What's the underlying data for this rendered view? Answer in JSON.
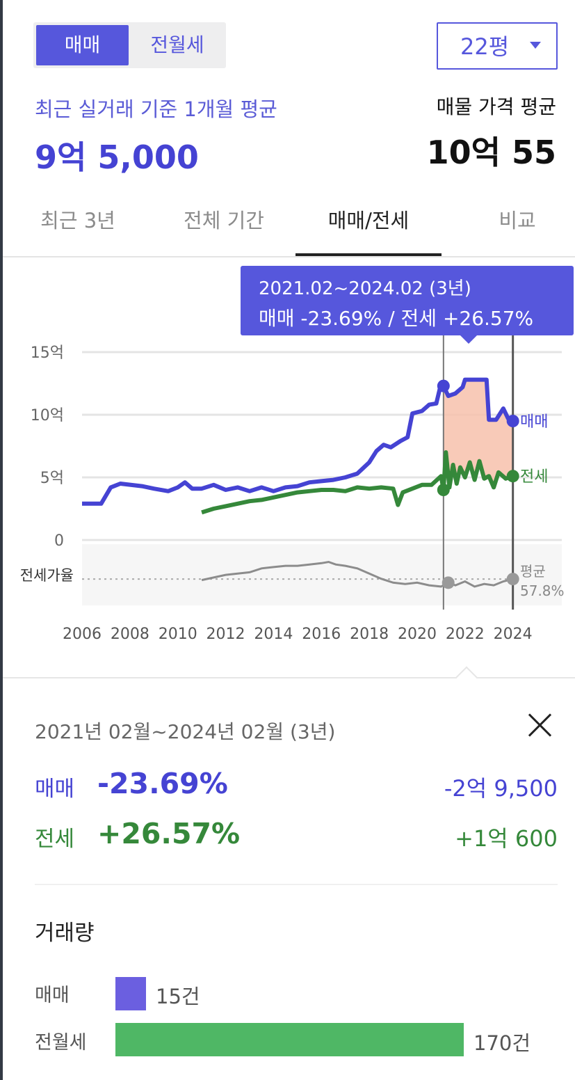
{
  "toggle": {
    "sale": "매매",
    "rent": "전월세"
  },
  "size_select": {
    "value": "22평"
  },
  "recent": {
    "label": "최근 실거래 기준 1개월 평균",
    "value": "9억 5,000"
  },
  "listing": {
    "label": "매물 가격 평균",
    "value": "10억 55"
  },
  "tabs": [
    "최근 3년",
    "전체 기간",
    "매매/전세",
    "비교"
  ],
  "tooltip": {
    "range": "2021.02~2024.02 (3년)",
    "change": "매매 -23.69%  /  전세 +26.57%"
  },
  "colors": {
    "accent": "#5657dc",
    "sale": "#4543d3",
    "jeonse": "#35883a",
    "ratio": "#8c8c8c",
    "highlight": "#f7c1ac",
    "rent_bar": "#4fb765",
    "sale_bar": "#6b5fe0"
  },
  "chart_data": {
    "type": "line",
    "x_range": [
      2006,
      2024.3
    ],
    "ylim": [
      0,
      15
    ],
    "y_ticks": [
      {
        "value": 15,
        "label": "15억"
      },
      {
        "value": 10,
        "label": "10억"
      },
      {
        "value": 5,
        "label": "5억"
      },
      {
        "value": 0,
        "label": "0"
      }
    ],
    "x_ticks": [
      "2006",
      "2008",
      "2010",
      "2012",
      "2014",
      "2016",
      "2018",
      "2020",
      "2022",
      "2024"
    ],
    "series": [
      {
        "name": "매매",
        "unit": "억",
        "points": [
          [
            2006.0,
            2.9
          ],
          [
            2006.8,
            2.9
          ],
          [
            2007.2,
            4.2
          ],
          [
            2007.6,
            4.5
          ],
          [
            2008.5,
            4.3
          ],
          [
            2009.0,
            4.1
          ],
          [
            2009.6,
            3.9
          ],
          [
            2010.0,
            4.2
          ],
          [
            2010.3,
            4.6
          ],
          [
            2010.6,
            4.1
          ],
          [
            2011.0,
            4.1
          ],
          [
            2011.5,
            4.4
          ],
          [
            2012.0,
            4.0
          ],
          [
            2012.5,
            4.2
          ],
          [
            2013.0,
            3.9
          ],
          [
            2013.5,
            4.2
          ],
          [
            2014.0,
            3.9
          ],
          [
            2014.5,
            4.2
          ],
          [
            2015.0,
            4.3
          ],
          [
            2015.5,
            4.6
          ],
          [
            2016.0,
            4.7
          ],
          [
            2016.5,
            4.8
          ],
          [
            2017.0,
            5.0
          ],
          [
            2017.5,
            5.3
          ],
          [
            2018.0,
            6.2
          ],
          [
            2018.3,
            7.1
          ],
          [
            2018.6,
            7.6
          ],
          [
            2018.9,
            7.4
          ],
          [
            2019.3,
            7.9
          ],
          [
            2019.6,
            8.2
          ],
          [
            2019.8,
            10.1
          ],
          [
            2020.2,
            10.3
          ],
          [
            2020.5,
            10.8
          ],
          [
            2020.8,
            10.9
          ],
          [
            2021.0,
            12.5
          ],
          [
            2021.1,
            12.3
          ],
          [
            2021.3,
            11.5
          ],
          [
            2021.6,
            11.7
          ],
          [
            2021.9,
            12.2
          ],
          [
            2022.0,
            12.8
          ],
          [
            2022.5,
            12.8
          ],
          [
            2022.9,
            12.8
          ],
          [
            2023.0,
            9.6
          ],
          [
            2023.3,
            9.6
          ],
          [
            2023.6,
            10.5
          ],
          [
            2023.8,
            9.7
          ],
          [
            2024.0,
            9.5
          ]
        ]
      },
      {
        "name": "전세",
        "unit": "억",
        "points": [
          [
            2011.0,
            2.2
          ],
          [
            2011.5,
            2.5
          ],
          [
            2012.0,
            2.7
          ],
          [
            2012.5,
            2.9
          ],
          [
            2013.0,
            3.1
          ],
          [
            2013.5,
            3.2
          ],
          [
            2014.0,
            3.4
          ],
          [
            2014.5,
            3.6
          ],
          [
            2015.0,
            3.8
          ],
          [
            2015.5,
            3.9
          ],
          [
            2016.0,
            4.0
          ],
          [
            2016.5,
            4.0
          ],
          [
            2017.0,
            3.9
          ],
          [
            2017.5,
            4.2
          ],
          [
            2018.0,
            4.1
          ],
          [
            2018.5,
            4.2
          ],
          [
            2019.0,
            4.1
          ],
          [
            2019.2,
            2.8
          ],
          [
            2019.4,
            3.8
          ],
          [
            2019.8,
            4.1
          ],
          [
            2020.2,
            4.4
          ],
          [
            2020.6,
            4.4
          ],
          [
            2021.0,
            5.1
          ],
          [
            2021.1,
            4.0
          ],
          [
            2021.2,
            7.0
          ],
          [
            2021.35,
            4.2
          ],
          [
            2021.5,
            6.0
          ],
          [
            2021.65,
            4.5
          ],
          [
            2021.8,
            5.8
          ],
          [
            2022.0,
            5.0
          ],
          [
            2022.2,
            6.2
          ],
          [
            2022.4,
            4.8
          ],
          [
            2022.6,
            6.3
          ],
          [
            2022.8,
            4.9
          ],
          [
            2023.0,
            5.1
          ],
          [
            2023.2,
            4.2
          ],
          [
            2023.4,
            5.4
          ],
          [
            2023.7,
            4.9
          ],
          [
            2024.0,
            5.1
          ]
        ]
      }
    ],
    "ratio": {
      "label": "전세가율",
      "avg_label": "평균",
      "avg_value": "57.8%",
      "points": [
        [
          2011.0,
          57
        ],
        [
          2011.5,
          59
        ],
        [
          2012.0,
          61
        ],
        [
          2012.5,
          62
        ],
        [
          2013.0,
          63
        ],
        [
          2013.5,
          66
        ],
        [
          2014.0,
          67
        ],
        [
          2014.5,
          68
        ],
        [
          2015.0,
          68
        ],
        [
          2015.5,
          69
        ],
        [
          2016.0,
          70
        ],
        [
          2016.3,
          71
        ],
        [
          2016.6,
          69
        ],
        [
          2017.0,
          68
        ],
        [
          2017.5,
          66
        ],
        [
          2018.0,
          62
        ],
        [
          2018.5,
          58
        ],
        [
          2019.0,
          55
        ],
        [
          2019.5,
          54
        ],
        [
          2020.0,
          55
        ],
        [
          2020.5,
          53
        ],
        [
          2021.0,
          52
        ],
        [
          2021.3,
          55
        ],
        [
          2021.6,
          53
        ],
        [
          2022.0,
          56
        ],
        [
          2022.4,
          52
        ],
        [
          2022.8,
          54
        ],
        [
          2023.2,
          53
        ],
        [
          2023.6,
          56
        ],
        [
          2024.0,
          57.8
        ]
      ]
    },
    "highlight": {
      "from": 2021.1,
      "to": 2024.0
    },
    "end_labels": {
      "sale": "매매",
      "jeonse": "전세"
    }
  },
  "period_detail": {
    "label": "2021년 02월~2024년 02월 (3년)",
    "sale": {
      "label": "매매",
      "pct": "-23.69%",
      "amount": "-2억 9,500"
    },
    "jeonse": {
      "label": "전세",
      "pct": "+26.57%",
      "amount": "+1억 600"
    }
  },
  "volume": {
    "title": "거래량",
    "items": [
      {
        "label": "매매",
        "count": "15건",
        "value": 15
      },
      {
        "label": "전월세",
        "count": "170건",
        "value": 170
      }
    ]
  }
}
